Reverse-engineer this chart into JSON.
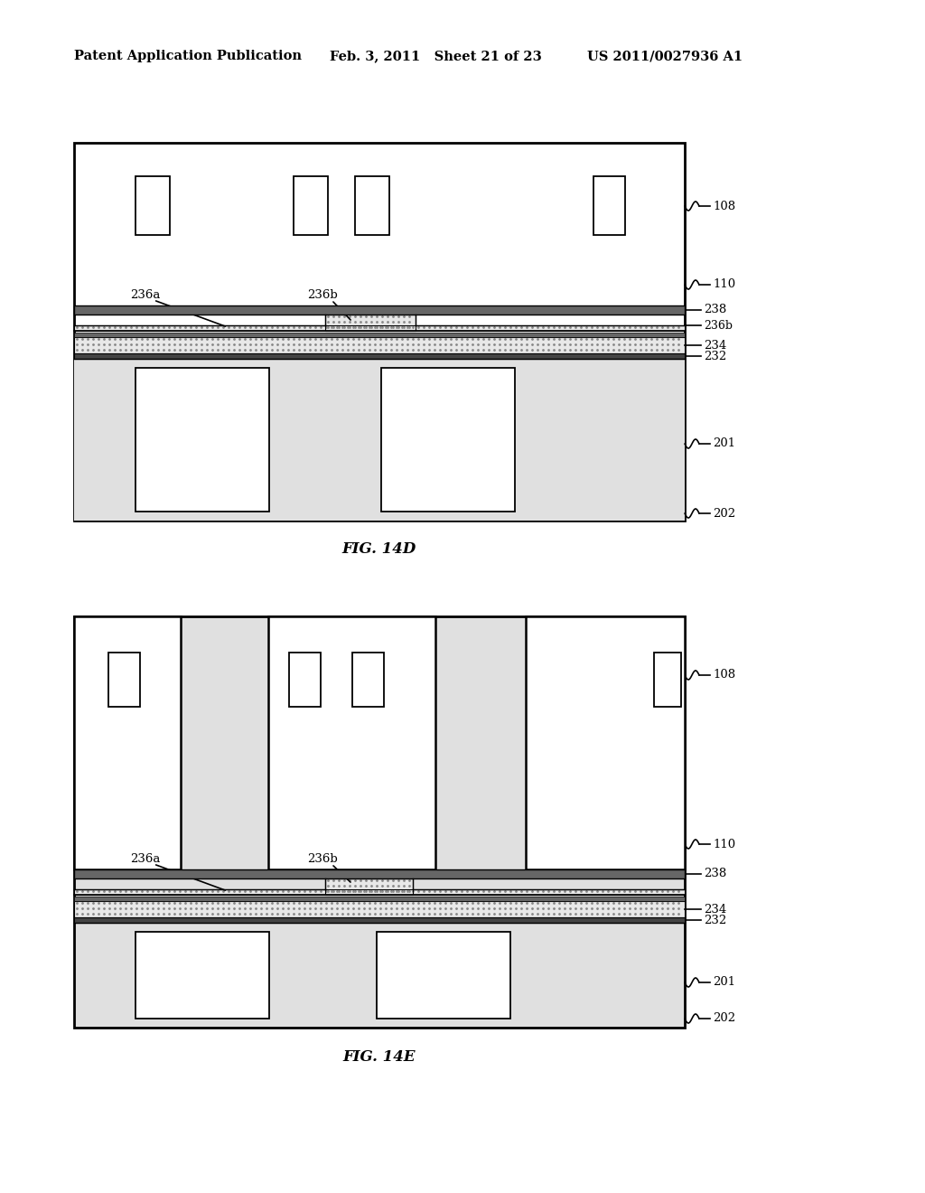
{
  "bg_color": "#ffffff",
  "header_left": "Patent Application Publication",
  "header_mid": "Feb. 3, 2011   Sheet 21 of 23",
  "header_right": "US 2011/0027936 A1",
  "fig1_label": "FIG. 14D",
  "fig2_label": "FIG. 14E",
  "line_color": "#000000",
  "dot_fill": "#e8e8e8",
  "dark_layer": "#555555",
  "white": "#ffffff",
  "light_gray": "#e8e8e8"
}
